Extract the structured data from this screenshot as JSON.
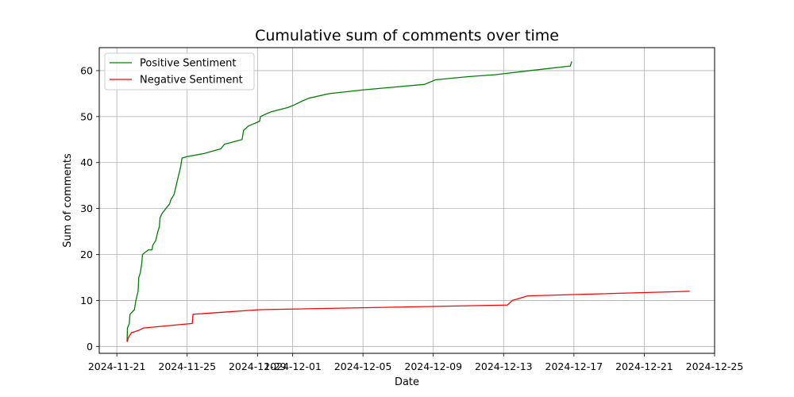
{
  "chart_data": {
    "type": "line",
    "title": "Cumulative sum of comments over time",
    "xlabel": "Date",
    "ylabel": "Sum of comments",
    "xlim": [
      "2024-11-20",
      "2024-12-25"
    ],
    "ylim": [
      -1.5,
      65
    ],
    "x_ticks": [
      "2024-11-21",
      "2024-11-25",
      "2024-11-29",
      "2024-12-01",
      "2024-12-05",
      "2024-12-09",
      "2024-12-13",
      "2024-12-17",
      "2024-12-21",
      "2024-12-25"
    ],
    "y_ticks": [
      0,
      10,
      20,
      30,
      40,
      50,
      60
    ],
    "grid": true,
    "legend_position": "top-left",
    "series": [
      {
        "name": "Positive Sentiment",
        "color": "#008000",
        "points": [
          [
            "2024-11-21 14:00",
            1
          ],
          [
            "2024-11-21 14:30",
            4
          ],
          [
            "2024-11-21 17:00",
            5
          ],
          [
            "2024-11-21 18:00",
            7
          ],
          [
            "2024-11-22 00:00",
            8
          ],
          [
            "2024-11-22 02:00",
            10
          ],
          [
            "2024-11-22 05:00",
            12
          ],
          [
            "2024-11-22 06:00",
            15
          ],
          [
            "2024-11-22 08:00",
            16
          ],
          [
            "2024-11-22 10:00",
            18
          ],
          [
            "2024-11-22 11:00",
            20
          ],
          [
            "2024-11-22 19:00",
            21
          ],
          [
            "2024-11-23 00:00",
            21
          ],
          [
            "2024-11-23 01:00",
            22
          ],
          [
            "2024-11-23 05:00",
            23
          ],
          [
            "2024-11-23 08:00",
            25
          ],
          [
            "2024-11-23 10:00",
            26
          ],
          [
            "2024-11-23 11:00",
            28
          ],
          [
            "2024-11-23 14:00",
            29
          ],
          [
            "2024-11-24 00:00",
            31
          ],
          [
            "2024-11-24 02:00",
            32
          ],
          [
            "2024-11-24 06:00",
            33
          ],
          [
            "2024-11-24 09:00",
            35
          ],
          [
            "2024-11-24 12:00",
            37
          ],
          [
            "2024-11-24 15:00",
            39
          ],
          [
            "2024-11-24 17:00",
            41
          ],
          [
            "2024-11-25 00:00",
            41.3
          ],
          [
            "2024-11-26 00:00",
            42
          ],
          [
            "2024-11-26 22:00",
            43
          ],
          [
            "2024-11-27 03:00",
            44
          ],
          [
            "2024-11-28 03:00",
            45
          ],
          [
            "2024-11-28 05:00",
            47
          ],
          [
            "2024-11-28 12:00",
            48
          ],
          [
            "2024-11-28 20:00",
            48.5
          ],
          [
            "2024-11-29 03:00",
            49
          ],
          [
            "2024-11-29 04:00",
            50
          ],
          [
            "2024-11-29 12:00",
            50.6
          ],
          [
            "2024-11-29 18:00",
            51
          ],
          [
            "2024-11-30 06:00",
            51.5
          ],
          [
            "2024-11-30 18:00",
            52
          ],
          [
            "2024-12-01 03:00",
            52.6
          ],
          [
            "2024-12-01 12:00",
            53.3
          ],
          [
            "2024-12-01 22:00",
            54
          ],
          [
            "2024-12-03 02:00",
            55
          ],
          [
            "2024-12-05 00:00",
            55.8
          ],
          [
            "2024-12-07 00:00",
            56.5
          ],
          [
            "2024-12-08 12:00",
            57
          ],
          [
            "2024-12-09 03:00",
            58
          ],
          [
            "2024-12-11 00:00",
            58.7
          ],
          [
            "2024-12-12 12:00",
            59.1
          ],
          [
            "2024-12-14 12:00",
            60
          ],
          [
            "2024-12-16 19:00",
            61
          ],
          [
            "2024-12-16 21:00",
            62
          ]
        ]
      },
      {
        "name": "Negative Sentiment",
        "color": "#ff0000",
        "points": [
          [
            "2024-11-21 14:00",
            1
          ],
          [
            "2024-11-21 16:00",
            2
          ],
          [
            "2024-11-21 20:00",
            3
          ],
          [
            "2024-11-22 06:00",
            3.5
          ],
          [
            "2024-11-22 12:00",
            4
          ],
          [
            "2024-11-25 07:00",
            5
          ],
          [
            "2024-11-25 08:00",
            7
          ],
          [
            "2024-11-29 03:00",
            8
          ],
          [
            "2024-12-13 05:00",
            9
          ],
          [
            "2024-12-13 12:00",
            10
          ],
          [
            "2024-12-14 09:00",
            11
          ],
          [
            "2024-12-23 14:00",
            12
          ]
        ]
      }
    ]
  }
}
